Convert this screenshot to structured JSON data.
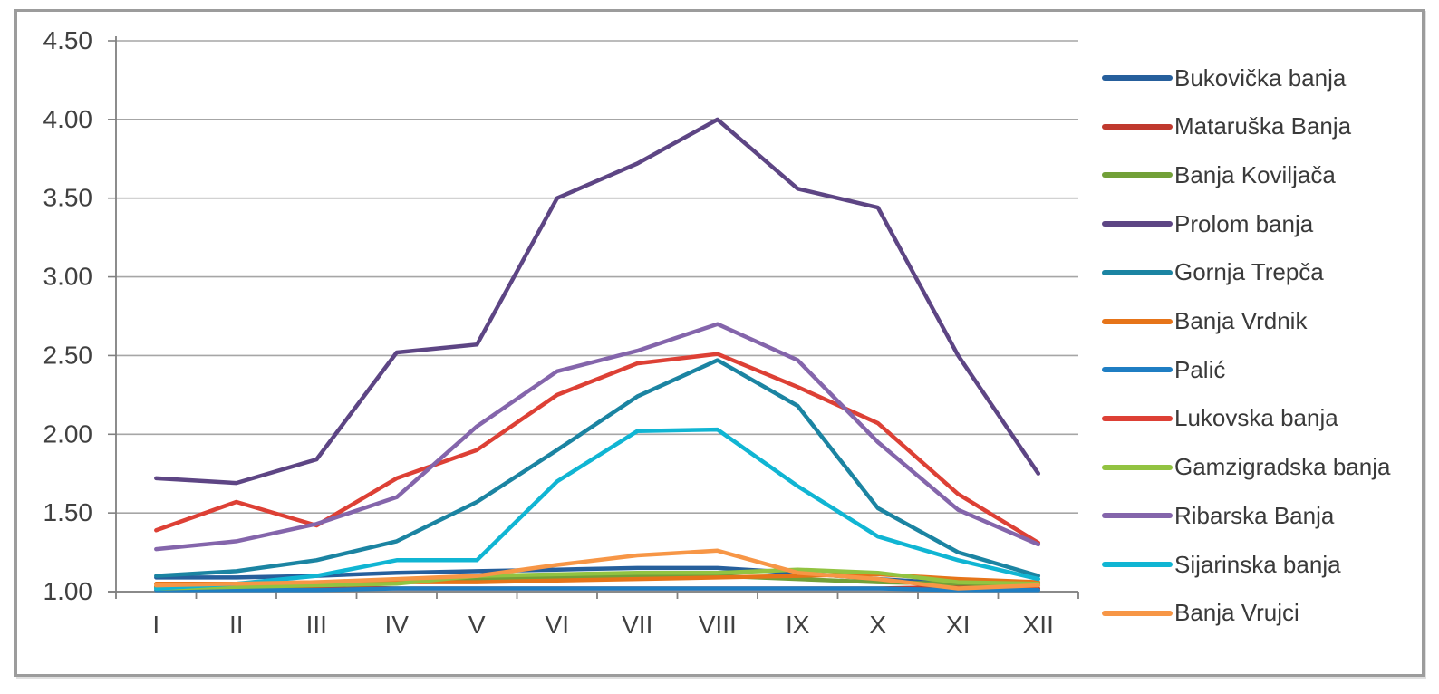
{
  "chart_data": {
    "type": "line",
    "title": "",
    "xlabel": "",
    "ylabel": "",
    "x_categories": [
      "I",
      "II",
      "III",
      "IV",
      "V",
      "VI",
      "VII",
      "VIII",
      "IX",
      "X",
      "XI",
      "XII"
    ],
    "y_ticks": [
      "4.50",
      "4.00",
      "3.50",
      "3.00",
      "2.50",
      "2.00",
      "1.50",
      "1.00"
    ],
    "ylim": [
      1.0,
      4.5
    ],
    "y_step": 0.5,
    "grid": true,
    "legend_position": "right",
    "series": [
      {
        "name": "Bukovička banja",
        "color": "#265F9C",
        "values": [
          1.09,
          1.09,
          1.1,
          1.12,
          1.13,
          1.14,
          1.15,
          1.15,
          1.12,
          1.08,
          1.05,
          1.04
        ]
      },
      {
        "name": "Mataruška Banja",
        "color": "#C0392E",
        "values": [
          1.03,
          1.03,
          1.03,
          1.02,
          1.02,
          1.02,
          1.02,
          1.02,
          1.02,
          1.02,
          1.03,
          1.02
        ]
      },
      {
        "name": "Banja Koviljača",
        "color": "#72A038",
        "values": [
          1.03,
          1.04,
          1.05,
          1.06,
          1.08,
          1.09,
          1.1,
          1.1,
          1.08,
          1.06,
          1.05,
          1.05
        ]
      },
      {
        "name": "Prolom banja",
        "color": "#5D4584",
        "values": [
          1.72,
          1.69,
          1.84,
          2.52,
          2.57,
          3.5,
          3.72,
          4.0,
          3.56,
          3.44,
          2.5,
          1.75
        ]
      },
      {
        "name": "Gornja Trepča",
        "color": "#1B84A2",
        "values": [
          1.1,
          1.13,
          1.2,
          1.32,
          1.57,
          1.9,
          2.24,
          2.47,
          2.18,
          1.53,
          1.25,
          1.1
        ]
      },
      {
        "name": "Banja Vrdnik",
        "color": "#E67419",
        "values": [
          1.05,
          1.05,
          1.06,
          1.06,
          1.06,
          1.07,
          1.08,
          1.09,
          1.1,
          1.11,
          1.08,
          1.06
        ]
      },
      {
        "name": "Palić",
        "color": "#1F7EC3",
        "values": [
          1.01,
          1.01,
          1.01,
          1.02,
          1.02,
          1.02,
          1.02,
          1.02,
          1.02,
          1.02,
          1.01,
          1.01
        ]
      },
      {
        "name": "Lukovska banja",
        "color": "#DD4035",
        "values": [
          1.39,
          1.57,
          1.42,
          1.72,
          1.9,
          2.25,
          2.45,
          2.51,
          2.3,
          2.07,
          1.62,
          1.31
        ]
      },
      {
        "name": "Gamzigradska banja",
        "color": "#92C341",
        "values": [
          1.02,
          1.03,
          1.04,
          1.05,
          1.1,
          1.11,
          1.12,
          1.12,
          1.14,
          1.12,
          1.06,
          1.05
        ]
      },
      {
        "name": "Ribarska Banja",
        "color": "#8465AB",
        "values": [
          1.27,
          1.32,
          1.43,
          1.6,
          2.05,
          2.4,
          2.53,
          2.7,
          2.47,
          1.95,
          1.52,
          1.3
        ]
      },
      {
        "name": "Sijarinska banja",
        "color": "#10B5D3",
        "values": [
          1.02,
          1.05,
          1.1,
          1.2,
          1.2,
          1.7,
          2.02,
          2.03,
          1.67,
          1.35,
          1.2,
          1.08
        ]
      },
      {
        "name": "Banja Vrujci",
        "color": "#F79646",
        "values": [
          1.04,
          1.05,
          1.06,
          1.08,
          1.1,
          1.17,
          1.23,
          1.26,
          1.12,
          1.08,
          1.02,
          1.04
        ]
      }
    ]
  },
  "style": {
    "grid_color": "#A6A6A6",
    "axis_color": "#808080",
    "tick_label_color": "#404040",
    "frame_color": "#9C9C9C",
    "background": "#FFFFFF",
    "line_width": 4.5
  }
}
